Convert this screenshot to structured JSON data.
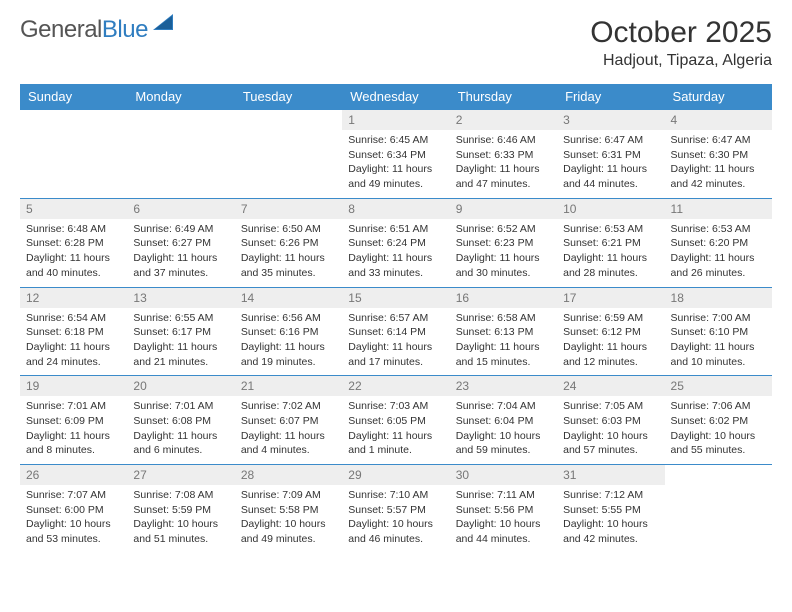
{
  "logo": {
    "general": "General",
    "blue": "Blue"
  },
  "title": "October 2025",
  "location": "Hadjout, Tipaza, Algeria",
  "header_bg": "#3b8bca",
  "border_color": "#3b8bca",
  "daynum_bg": "#eeeeee",
  "weekdays": [
    "Sunday",
    "Monday",
    "Tuesday",
    "Wednesday",
    "Thursday",
    "Friday",
    "Saturday"
  ],
  "weeks": [
    [
      null,
      null,
      null,
      {
        "n": "1",
        "sr": "6:45 AM",
        "ss": "6:34 PM",
        "dl": "11 hours and 49 minutes."
      },
      {
        "n": "2",
        "sr": "6:46 AM",
        "ss": "6:33 PM",
        "dl": "11 hours and 47 minutes."
      },
      {
        "n": "3",
        "sr": "6:47 AM",
        "ss": "6:31 PM",
        "dl": "11 hours and 44 minutes."
      },
      {
        "n": "4",
        "sr": "6:47 AM",
        "ss": "6:30 PM",
        "dl": "11 hours and 42 minutes."
      }
    ],
    [
      {
        "n": "5",
        "sr": "6:48 AM",
        "ss": "6:28 PM",
        "dl": "11 hours and 40 minutes."
      },
      {
        "n": "6",
        "sr": "6:49 AM",
        "ss": "6:27 PM",
        "dl": "11 hours and 37 minutes."
      },
      {
        "n": "7",
        "sr": "6:50 AM",
        "ss": "6:26 PM",
        "dl": "11 hours and 35 minutes."
      },
      {
        "n": "8",
        "sr": "6:51 AM",
        "ss": "6:24 PM",
        "dl": "11 hours and 33 minutes."
      },
      {
        "n": "9",
        "sr": "6:52 AM",
        "ss": "6:23 PM",
        "dl": "11 hours and 30 minutes."
      },
      {
        "n": "10",
        "sr": "6:53 AM",
        "ss": "6:21 PM",
        "dl": "11 hours and 28 minutes."
      },
      {
        "n": "11",
        "sr": "6:53 AM",
        "ss": "6:20 PM",
        "dl": "11 hours and 26 minutes."
      }
    ],
    [
      {
        "n": "12",
        "sr": "6:54 AM",
        "ss": "6:18 PM",
        "dl": "11 hours and 24 minutes."
      },
      {
        "n": "13",
        "sr": "6:55 AM",
        "ss": "6:17 PM",
        "dl": "11 hours and 21 minutes."
      },
      {
        "n": "14",
        "sr": "6:56 AM",
        "ss": "6:16 PM",
        "dl": "11 hours and 19 minutes."
      },
      {
        "n": "15",
        "sr": "6:57 AM",
        "ss": "6:14 PM",
        "dl": "11 hours and 17 minutes."
      },
      {
        "n": "16",
        "sr": "6:58 AM",
        "ss": "6:13 PM",
        "dl": "11 hours and 15 minutes."
      },
      {
        "n": "17",
        "sr": "6:59 AM",
        "ss": "6:12 PM",
        "dl": "11 hours and 12 minutes."
      },
      {
        "n": "18",
        "sr": "7:00 AM",
        "ss": "6:10 PM",
        "dl": "11 hours and 10 minutes."
      }
    ],
    [
      {
        "n": "19",
        "sr": "7:01 AM",
        "ss": "6:09 PM",
        "dl": "11 hours and 8 minutes."
      },
      {
        "n": "20",
        "sr": "7:01 AM",
        "ss": "6:08 PM",
        "dl": "11 hours and 6 minutes."
      },
      {
        "n": "21",
        "sr": "7:02 AM",
        "ss": "6:07 PM",
        "dl": "11 hours and 4 minutes."
      },
      {
        "n": "22",
        "sr": "7:03 AM",
        "ss": "6:05 PM",
        "dl": "11 hours and 1 minute."
      },
      {
        "n": "23",
        "sr": "7:04 AM",
        "ss": "6:04 PM",
        "dl": "10 hours and 59 minutes."
      },
      {
        "n": "24",
        "sr": "7:05 AM",
        "ss": "6:03 PM",
        "dl": "10 hours and 57 minutes."
      },
      {
        "n": "25",
        "sr": "7:06 AM",
        "ss": "6:02 PM",
        "dl": "10 hours and 55 minutes."
      }
    ],
    [
      {
        "n": "26",
        "sr": "7:07 AM",
        "ss": "6:00 PM",
        "dl": "10 hours and 53 minutes."
      },
      {
        "n": "27",
        "sr": "7:08 AM",
        "ss": "5:59 PM",
        "dl": "10 hours and 51 minutes."
      },
      {
        "n": "28",
        "sr": "7:09 AM",
        "ss": "5:58 PM",
        "dl": "10 hours and 49 minutes."
      },
      {
        "n": "29",
        "sr": "7:10 AM",
        "ss": "5:57 PM",
        "dl": "10 hours and 46 minutes."
      },
      {
        "n": "30",
        "sr": "7:11 AM",
        "ss": "5:56 PM",
        "dl": "10 hours and 44 minutes."
      },
      {
        "n": "31",
        "sr": "7:12 AM",
        "ss": "5:55 PM",
        "dl": "10 hours and 42 minutes."
      },
      null
    ]
  ],
  "labels": {
    "sunrise": "Sunrise:",
    "sunset": "Sunset:",
    "daylight": "Daylight:"
  }
}
